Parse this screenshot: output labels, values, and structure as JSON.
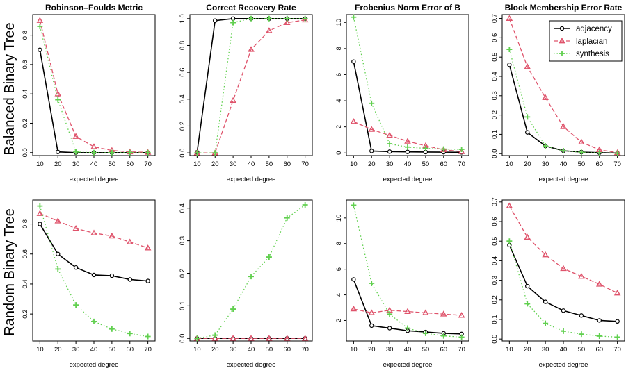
{
  "colors": {
    "adjacency": "#000000",
    "laplacian": "#df536b",
    "synthesis": "#61d04f",
    "frame": "#000000"
  },
  "row_labels": [
    "Balanced Binary Tree",
    "Random Binary Tree"
  ],
  "legend": {
    "placement": "top-right of last top panel",
    "entries": [
      {
        "name": "adjacency",
        "marker": "circle",
        "line": "solid"
      },
      {
        "name": "laplacian",
        "marker": "triangle",
        "line": "dashed"
      },
      {
        "name": "synthesis",
        "marker": "plus",
        "line": "dotted"
      }
    ]
  },
  "chart_data": [
    {
      "type": "line",
      "title": "Robinson–Foulds Metric",
      "xlabel": "expected degree",
      "x": [
        10,
        20,
        30,
        40,
        50,
        60,
        70
      ],
      "xticks": [
        10,
        20,
        30,
        40,
        50,
        60,
        70
      ],
      "ylim": [
        -0.02,
        0.94
      ],
      "yticks": [
        0.0,
        0.2,
        0.4,
        0.6,
        0.8
      ],
      "ytick_labels": [
        "0.0",
        "0.2",
        "0.4",
        "0.6",
        "0.8"
      ],
      "series": [
        {
          "name": "adjacency",
          "values": [
            0.7,
            0.005,
            0.0,
            0.0,
            0.0,
            0.0,
            0.0
          ]
        },
        {
          "name": "laplacian",
          "values": [
            0.9,
            0.4,
            0.11,
            0.04,
            0.015,
            0.005,
            0.002
          ]
        },
        {
          "name": "synthesis",
          "values": [
            0.86,
            0.36,
            0.005,
            0.0,
            0.0,
            0.0,
            0.0
          ]
        }
      ]
    },
    {
      "type": "line",
      "title": "Correct Recovery Rate",
      "xlabel": "expected degree",
      "x": [
        10,
        20,
        30,
        40,
        50,
        60,
        70
      ],
      "xticks": [
        10,
        20,
        30,
        40,
        50,
        60,
        70
      ],
      "ylim": [
        -0.02,
        1.03
      ],
      "yticks": [
        0.0,
        0.2,
        0.4,
        0.6,
        0.8,
        1.0
      ],
      "ytick_labels": [
        "0.0",
        "0.2",
        "0.4",
        "0.6",
        "0.8",
        "1.0"
      ],
      "series": [
        {
          "name": "adjacency",
          "values": [
            0.005,
            0.985,
            1.0,
            1.0,
            1.0,
            1.0,
            1.0
          ]
        },
        {
          "name": "laplacian",
          "values": [
            0.0,
            0.0,
            0.39,
            0.77,
            0.91,
            0.97,
            0.99
          ]
        },
        {
          "name": "synthesis",
          "values": [
            0.0,
            0.0,
            0.97,
            1.0,
            1.0,
            1.0,
            1.0
          ]
        }
      ]
    },
    {
      "type": "line",
      "title": "Frobenius Norm Error of B",
      "xlabel": "expected degree",
      "x": [
        10,
        20,
        30,
        40,
        50,
        60,
        70
      ],
      "xticks": [
        10,
        20,
        30,
        40,
        50,
        60,
        70
      ],
      "ylim": [
        -0.2,
        10.6
      ],
      "yticks": [
        0,
        2,
        4,
        6,
        8,
        10
      ],
      "ytick_labels": [
        "0",
        "2",
        "4",
        "6",
        "8",
        "10"
      ],
      "series": [
        {
          "name": "adjacency",
          "values": [
            7.0,
            0.15,
            0.1,
            0.08,
            0.07,
            0.06,
            0.05
          ]
        },
        {
          "name": "laplacian",
          "values": [
            2.4,
            1.8,
            1.35,
            0.9,
            0.55,
            0.25,
            0.1
          ]
        },
        {
          "name": "synthesis",
          "values": [
            10.4,
            3.8,
            0.7,
            0.45,
            0.35,
            0.3,
            0.28
          ]
        }
      ]
    },
    {
      "type": "line",
      "title": "Block Membership Error Rate",
      "xlabel": "expected degree",
      "x": [
        10,
        20,
        30,
        40,
        50,
        60,
        70
      ],
      "xticks": [
        10,
        20,
        30,
        40,
        50,
        60,
        70
      ],
      "ylim": [
        -0.01,
        0.72
      ],
      "yticks": [
        0.0,
        0.1,
        0.2,
        0.3,
        0.4,
        0.5,
        0.6,
        0.7
      ],
      "ytick_labels": [
        "0.0",
        "0.1",
        "0.2",
        "0.3",
        "0.4",
        "0.5",
        "0.6",
        "0.7"
      ],
      "series": [
        {
          "name": "adjacency",
          "values": [
            0.46,
            0.11,
            0.04,
            0.015,
            0.008,
            0.005,
            0.003
          ]
        },
        {
          "name": "laplacian",
          "values": [
            0.7,
            0.45,
            0.29,
            0.14,
            0.06,
            0.02,
            0.005
          ]
        },
        {
          "name": "synthesis",
          "values": [
            0.54,
            0.19,
            0.04,
            0.015,
            0.007,
            0.004,
            0.002
          ]
        }
      ]
    },
    {
      "type": "line",
      "title": "",
      "xlabel": "expected degree",
      "x": [
        10,
        20,
        30,
        40,
        50,
        60,
        70
      ],
      "xticks": [
        10,
        20,
        30,
        40,
        50,
        60,
        70
      ],
      "ylim": [
        0.02,
        0.96
      ],
      "yticks": [
        0.2,
        0.4,
        0.6,
        0.8
      ],
      "ytick_labels": [
        "0.2",
        "0.4",
        "0.6",
        "0.8"
      ],
      "series": [
        {
          "name": "adjacency",
          "values": [
            0.8,
            0.6,
            0.51,
            0.46,
            0.455,
            0.43,
            0.42
          ]
        },
        {
          "name": "laplacian",
          "values": [
            0.87,
            0.82,
            0.77,
            0.74,
            0.72,
            0.68,
            0.64
          ]
        },
        {
          "name": "synthesis",
          "values": [
            0.92,
            0.5,
            0.26,
            0.15,
            0.1,
            0.07,
            0.05
          ]
        }
      ]
    },
    {
      "type": "line",
      "title": "",
      "xlabel": "expected degree",
      "x": [
        10,
        20,
        30,
        40,
        50,
        60,
        70
      ],
      "xticks": [
        10,
        20,
        30,
        40,
        50,
        60,
        70
      ],
      "ylim": [
        -0.008,
        0.425
      ],
      "yticks": [
        0.0,
        0.1,
        0.2,
        0.3,
        0.4
      ],
      "ytick_labels": [
        "0.0",
        "0.1",
        "0.2",
        "0.3",
        "0.4"
      ],
      "series": [
        {
          "name": "adjacency",
          "values": [
            0.0,
            0.0,
            0.0,
            0.0,
            0.0,
            0.0,
            0.0
          ]
        },
        {
          "name": "laplacian",
          "values": [
            0.0,
            0.0,
            0.0,
            0.0,
            0.0,
            0.0,
            0.0
          ]
        },
        {
          "name": "synthesis",
          "values": [
            0.0,
            0.01,
            0.09,
            0.19,
            0.25,
            0.37,
            0.41
          ]
        }
      ]
    },
    {
      "type": "line",
      "title": "",
      "xlabel": "expected degree",
      "x": [
        10,
        20,
        30,
        40,
        50,
        60,
        70
      ],
      "xticks": [
        10,
        20,
        30,
        40,
        50,
        60,
        70
      ],
      "ylim": [
        0.4,
        11.4
      ],
      "yticks": [
        2,
        4,
        6,
        8,
        10
      ],
      "ytick_labels": [
        "2",
        "4",
        "6",
        "8",
        "10"
      ],
      "series": [
        {
          "name": "adjacency",
          "values": [
            5.2,
            1.6,
            1.4,
            1.2,
            1.1,
            1.0,
            0.95
          ]
        },
        {
          "name": "laplacian",
          "values": [
            2.9,
            2.6,
            2.8,
            2.7,
            2.6,
            2.5,
            2.4
          ]
        },
        {
          "name": "synthesis",
          "values": [
            11.0,
            4.9,
            2.5,
            1.4,
            1.0,
            0.8,
            0.7
          ]
        }
      ]
    },
    {
      "type": "line",
      "title": "",
      "xlabel": "expected degree",
      "x": [
        10,
        20,
        30,
        40,
        50,
        60,
        70
      ],
      "xticks": [
        10,
        20,
        30,
        40,
        50,
        60,
        70
      ],
      "ylim": [
        -0.01,
        0.71
      ],
      "yticks": [
        0.0,
        0.1,
        0.2,
        0.3,
        0.4,
        0.5,
        0.6,
        0.7
      ],
      "ytick_labels": [
        "0.0",
        "0.1",
        "0.2",
        "0.3",
        "0.4",
        "0.5",
        "0.6",
        "0.7"
      ],
      "series": [
        {
          "name": "adjacency",
          "values": [
            0.48,
            0.27,
            0.19,
            0.145,
            0.12,
            0.095,
            0.09
          ]
        },
        {
          "name": "laplacian",
          "values": [
            0.68,
            0.52,
            0.43,
            0.36,
            0.32,
            0.28,
            0.235
          ]
        },
        {
          "name": "synthesis",
          "values": [
            0.5,
            0.18,
            0.08,
            0.04,
            0.025,
            0.015,
            0.01
          ]
        }
      ]
    }
  ]
}
